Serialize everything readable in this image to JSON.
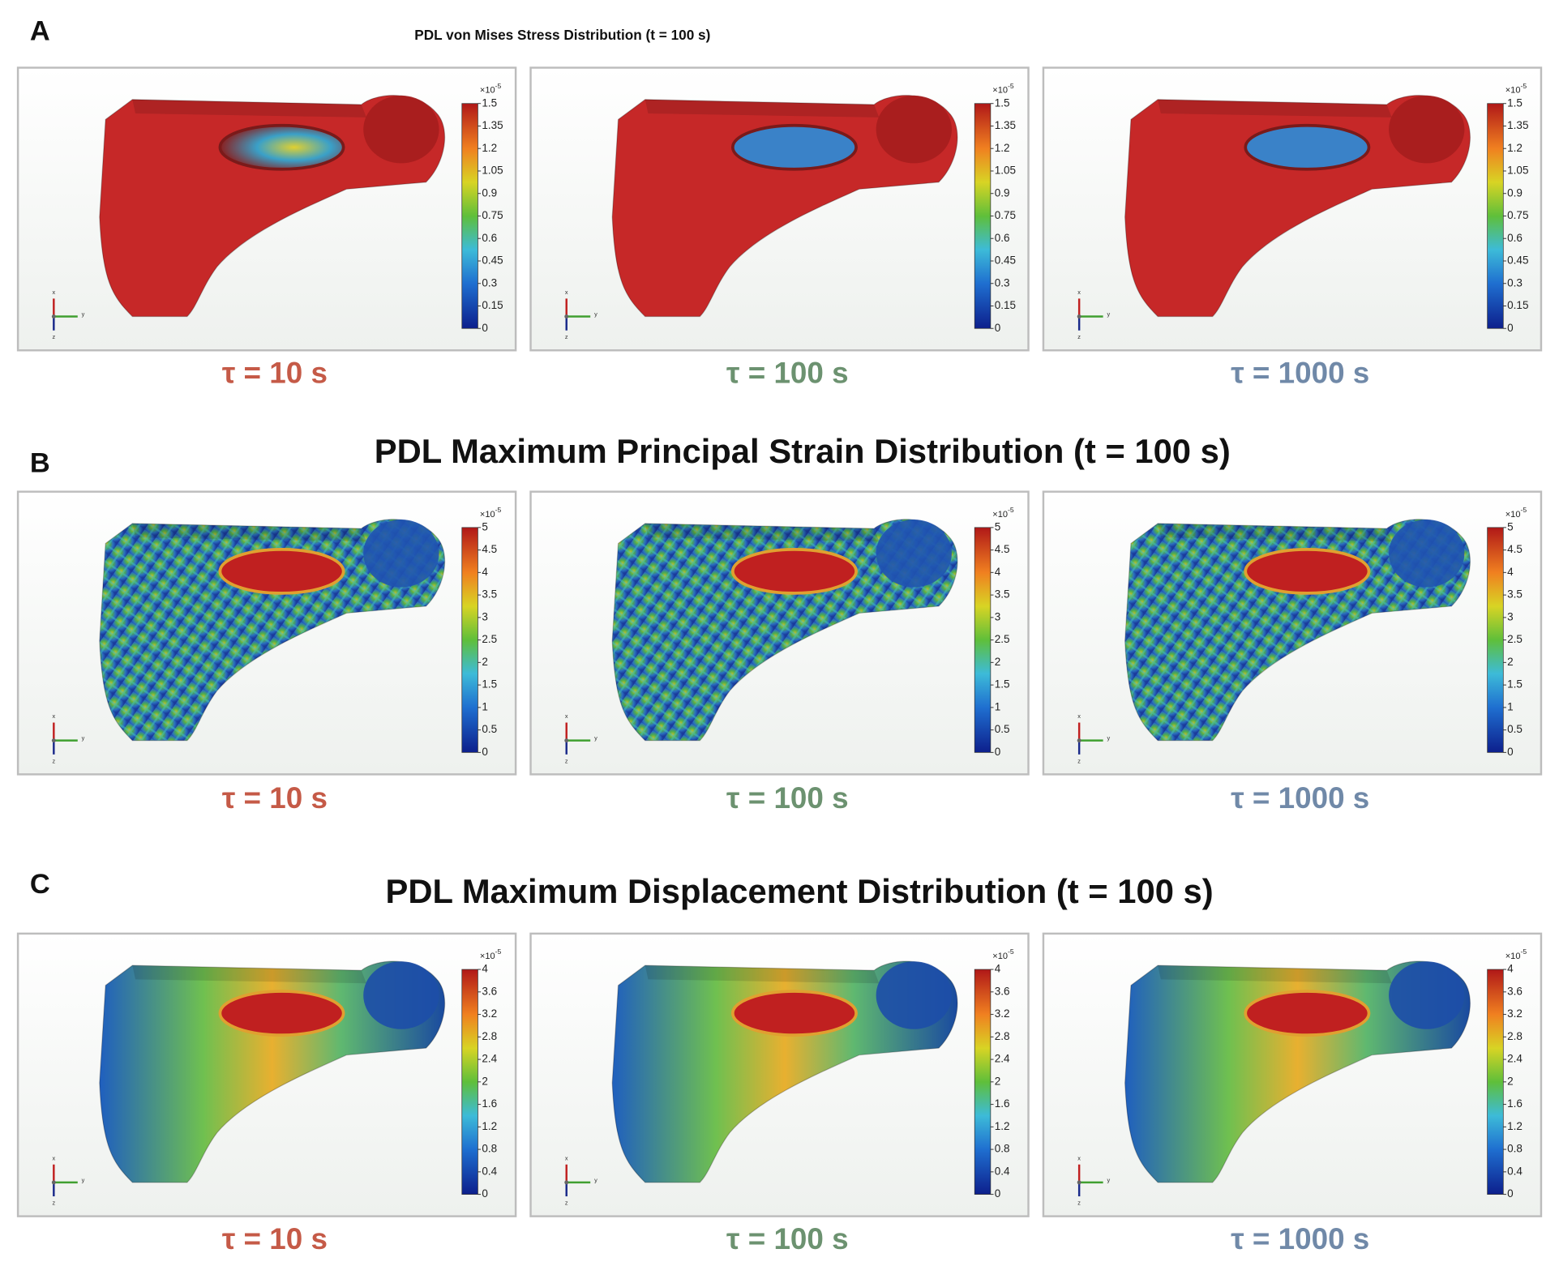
{
  "sections": [
    {
      "label": "A",
      "title": "PDL von Mises Stress Distribution (t = 100 s)",
      "colorbar": {
        "multiplier": "×10",
        "exponent": "-5",
        "range": [
          0,
          1.5
        ],
        "ticks": [
          0,
          0.15,
          0.3,
          0.45,
          0.6,
          0.75,
          0.9,
          1.05,
          1.2,
          1.35,
          1.5
        ]
      },
      "panels": [
        {
          "caption": "τ = 10 s",
          "color": "#c55a47"
        },
        {
          "caption": "τ = 100 s",
          "color": "#6c9270"
        },
        {
          "caption": "τ = 1000 s",
          "color": "#7089a8"
        }
      ]
    },
    {
      "label": "B",
      "title": "PDL Maximum Principal Strain Distribution (t = 100 s)",
      "colorbar": {
        "multiplier": "×10",
        "exponent": "-5",
        "range": [
          0,
          5
        ],
        "ticks": [
          0,
          0.5,
          1,
          1.5,
          2,
          2.5,
          3,
          3.5,
          4,
          4.5,
          5
        ]
      },
      "panels": [
        {
          "caption": "τ = 10 s",
          "color": "#c55a47"
        },
        {
          "caption": "τ = 100 s",
          "color": "#6c9270"
        },
        {
          "caption": "τ = 1000 s",
          "color": "#7089a8"
        }
      ]
    },
    {
      "label": "C",
      "title": "PDL Maximum Displacement Distribution (t = 100 s)",
      "colorbar": {
        "multiplier": "×10",
        "exponent": "-5",
        "range": [
          0,
          4
        ],
        "ticks": [
          0,
          0.4,
          0.8,
          1.2,
          1.6,
          2,
          2.4,
          2.8,
          3.2,
          3.6,
          4
        ]
      },
      "panels": [
        {
          "caption": "τ = 10 s",
          "color": "#c55a47"
        },
        {
          "caption": "τ = 100 s",
          "color": "#6c9270"
        },
        {
          "caption": "τ = 1000 s",
          "color": "#7089a8"
        }
      ]
    }
  ],
  "axes": [
    "x",
    "y",
    "z"
  ]
}
